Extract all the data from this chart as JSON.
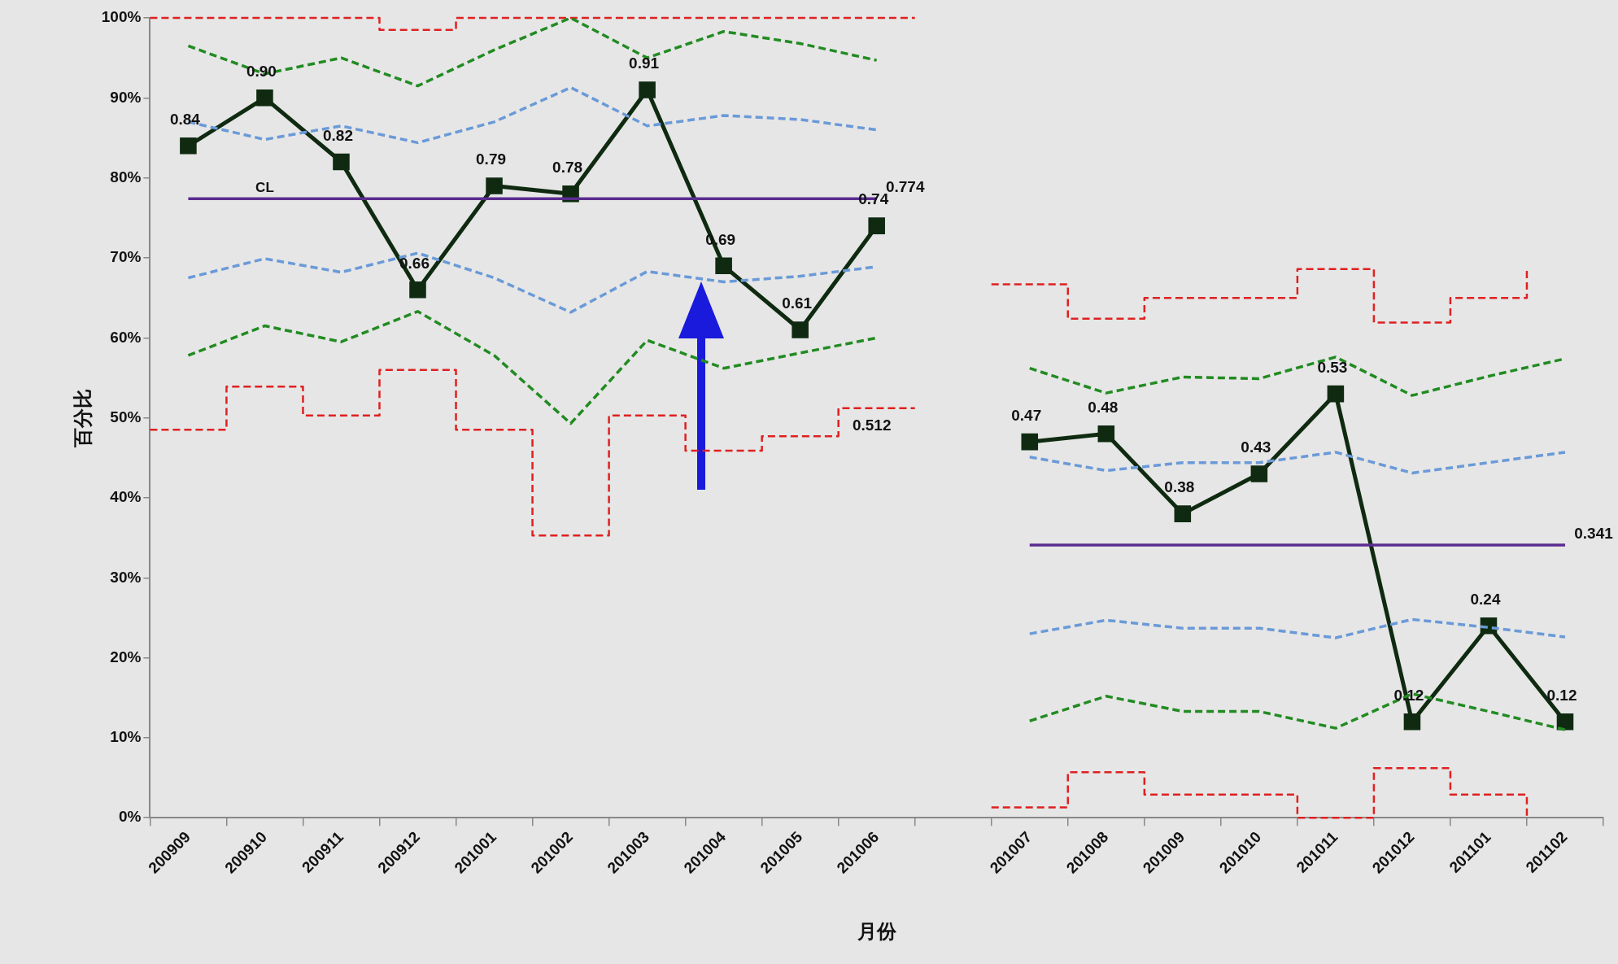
{
  "chart_data": {
    "type": "line",
    "xlabel": "月份",
    "ylabel": "百分比",
    "categories": [
      "200909",
      "200910",
      "200911",
      "200912",
      "201001",
      "201002",
      "201003",
      "201004",
      "201005",
      "201006",
      null,
      "201007",
      "201008",
      "201009",
      "201010",
      "201011",
      "201012",
      "201101",
      "201102"
    ],
    "ylim": [
      0,
      1
    ],
    "yticks": [
      {
        "value": 0,
        "label": "0%"
      },
      {
        "value": 0.1,
        "label": "10%"
      },
      {
        "value": 0.2,
        "label": "20%"
      },
      {
        "value": 0.3,
        "label": "30%"
      },
      {
        "value": 0.4,
        "label": "40%"
      },
      {
        "value": 0.5,
        "label": "50%"
      },
      {
        "value": 0.6,
        "label": "60%"
      },
      {
        "value": 0.7,
        "label": "70%"
      },
      {
        "value": 0.8,
        "label": "80%"
      },
      {
        "value": 0.9,
        "label": "90%"
      },
      {
        "value": 1,
        "label": "100%"
      }
    ],
    "grid": false,
    "legend": false,
    "annotations": [
      {
        "text": "CL",
        "x": "200910",
        "y": 0.774
      }
    ],
    "series": [
      {
        "type": "step",
        "color": "#e02020",
        "line_style": "dashed",
        "values": [
          1.0,
          1.0,
          1.0,
          0.985,
          1.0,
          1.0,
          1.0,
          1.0,
          1.0,
          1.0,
          null,
          0.667,
          0.624,
          0.65,
          0.65,
          0.686,
          0.619,
          0.65,
          0.686
        ]
      },
      {
        "type": "step",
        "color": "#e02020",
        "line_style": "dashed",
        "values": [
          0.485,
          0.539,
          0.503,
          0.56,
          0.485,
          0.353,
          0.503,
          0.459,
          0.477,
          0.512,
          null,
          0.013,
          0.057,
          0.029,
          0.029,
          0.0,
          0.062,
          0.029,
          0.0
        ],
        "value_labels": [
          null,
          null,
          null,
          null,
          null,
          null,
          null,
          null,
          null,
          "0.512",
          null,
          null,
          null,
          null,
          null,
          null,
          null,
          null,
          null
        ]
      },
      {
        "type": "line",
        "color": "#228b22",
        "line_style": "dashed",
        "marker": "none",
        "values": [
          0.965,
          0.93,
          0.95,
          0.915,
          0.96,
          1.0,
          0.95,
          0.983,
          0.968,
          0.947,
          null,
          0.562,
          0.531,
          0.551,
          0.549,
          0.576,
          0.528,
          0.552,
          0.574
        ]
      },
      {
        "type": "line",
        "color": "#228b22",
        "line_style": "dashed",
        "marker": "none",
        "values": [
          0.578,
          0.615,
          0.595,
          0.633,
          0.578,
          0.493,
          0.597,
          0.562,
          0.581,
          0.6,
          null,
          0.121,
          0.152,
          0.133,
          0.133,
          0.112,
          0.155,
          0.133,
          0.11
        ]
      },
      {
        "type": "line",
        "color": "#6a9ad8",
        "line_style": "dashed",
        "marker": "none",
        "values": [
          0.87,
          0.848,
          0.865,
          0.844,
          0.87,
          0.913,
          0.865,
          0.878,
          0.873,
          0.86,
          null,
          0.451,
          0.434,
          0.444,
          0.444,
          0.457,
          0.431,
          0.444,
          0.457
        ]
      },
      {
        "type": "line",
        "color": "#6a9ad8",
        "line_style": "dashed",
        "marker": "none",
        "values": [
          0.675,
          0.699,
          0.682,
          0.706,
          0.675,
          0.632,
          0.683,
          0.67,
          0.677,
          0.689,
          null,
          0.23,
          0.247,
          0.237,
          0.237,
          0.225,
          0.248,
          0.238,
          0.226
        ]
      },
      {
        "type": "line",
        "color": "#5b2c8f",
        "line_style": "solid",
        "marker": "none",
        "values": [
          0.774,
          0.774,
          0.774,
          0.774,
          0.774,
          0.774,
          0.774,
          0.774,
          0.774,
          0.774,
          null,
          0.341,
          0.341,
          0.341,
          0.341,
          0.341,
          0.341,
          0.341,
          0.341
        ],
        "value_labels": [
          null,
          null,
          null,
          null,
          null,
          null,
          null,
          null,
          null,
          "0.774",
          null,
          null,
          null,
          null,
          null,
          null,
          null,
          null,
          "0.341"
        ]
      },
      {
        "color": "#0f2a10",
        "line_style": "solid",
        "marker": "square",
        "values": [
          0.84,
          0.9,
          0.82,
          0.66,
          0.79,
          0.78,
          0.91,
          0.69,
          0.61,
          0.74,
          null,
          0.47,
          0.48,
          0.38,
          0.43,
          0.53,
          0.12,
          0.24,
          0.12
        ],
        "value_labels": [
          "0.84",
          "0.90",
          "0.82",
          "0.66",
          "0.79",
          "0.78",
          "0.91",
          "0.69",
          "0.61",
          "0.74",
          null,
          "0.47",
          "0.48",
          "0.38",
          "0.43",
          "0.53",
          "0.12",
          "0.24",
          "0.12"
        ]
      }
    ]
  }
}
